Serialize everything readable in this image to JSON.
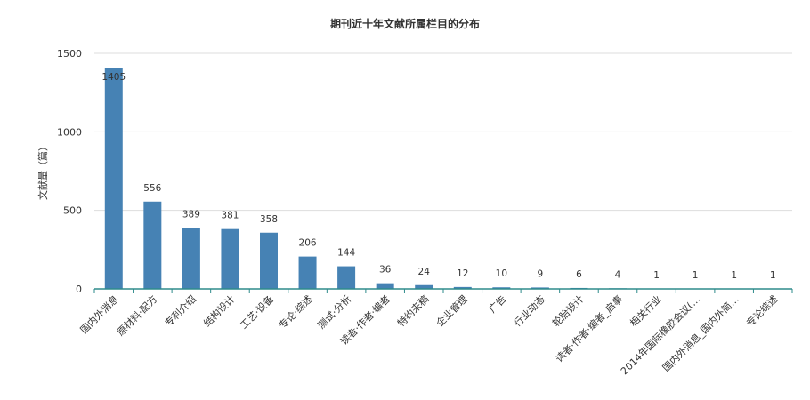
{
  "chart_data": {
    "type": "bar",
    "title": "期刊近十年文献所属栏目的分布",
    "ylabel": "文献量（篇）",
    "xlabel": "",
    "ylim": [
      0,
      1500
    ],
    "yticks": [
      0,
      500,
      1000,
      1500
    ],
    "grid": true,
    "legend": "none",
    "colors": {
      "bar": "#4682B4",
      "axis": "#2E8B8B",
      "grid": "#dddddd"
    },
    "categories": [
      "国内外消息",
      "原材料·配方",
      "专利介绍",
      "结构设计",
      "工艺·设备",
      "专论·综述",
      "测试·分析",
      "读者·作者·编者",
      "特约来稿",
      "企业管理",
      "广告",
      "行业动态",
      "轮胎设计",
      "读者·作者·编者_启事",
      "相关行业",
      "2014年国际橡胶会议(…",
      "国内外消息_国内外简…",
      "专论综述"
    ],
    "values": [
      1405,
      556,
      389,
      381,
      358,
      206,
      144,
      36,
      24,
      12,
      10,
      9,
      6,
      4,
      1,
      1,
      1,
      1
    ]
  }
}
